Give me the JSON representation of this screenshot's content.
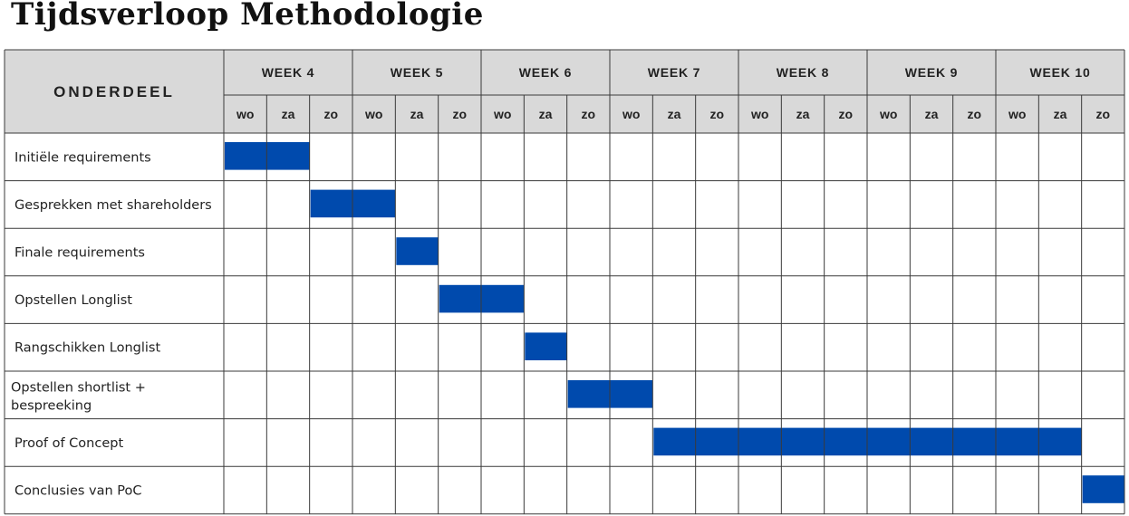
{
  "title": "Tijdsverloop  Methodologie",
  "chart_data": {
    "type": "gantt",
    "row_header": "ONDERDEEL",
    "weeks": [
      "WEEK 4",
      "WEEK 5",
      "WEEK 6",
      "WEEK 7",
      "WEEK 8",
      "WEEK 9",
      "WEEK 10"
    ],
    "days": [
      "wo",
      "za",
      "zo"
    ],
    "tasks": [
      {
        "name": "Initiële requirements",
        "start": 0,
        "end": 2
      },
      {
        "name": "Gesprekken met shareholders",
        "start": 2,
        "end": 4
      },
      {
        "name": "Finale requirements",
        "start": 4,
        "end": 5
      },
      {
        "name": "Opstellen Longlist",
        "start": 5,
        "end": 7
      },
      {
        "name": "Rangschikken Longlist",
        "start": 7,
        "end": 8
      },
      {
        "name": "Opstellen shortlist + bespreeking",
        "start": 8,
        "end": 10
      },
      {
        "name": "Proof of Concept",
        "start": 10,
        "end": 20
      },
      {
        "name": "Conclusies van PoC",
        "start": 20,
        "end": 21
      }
    ],
    "bar_color": "#004aad",
    "header_fill": "#d9d9d9"
  }
}
